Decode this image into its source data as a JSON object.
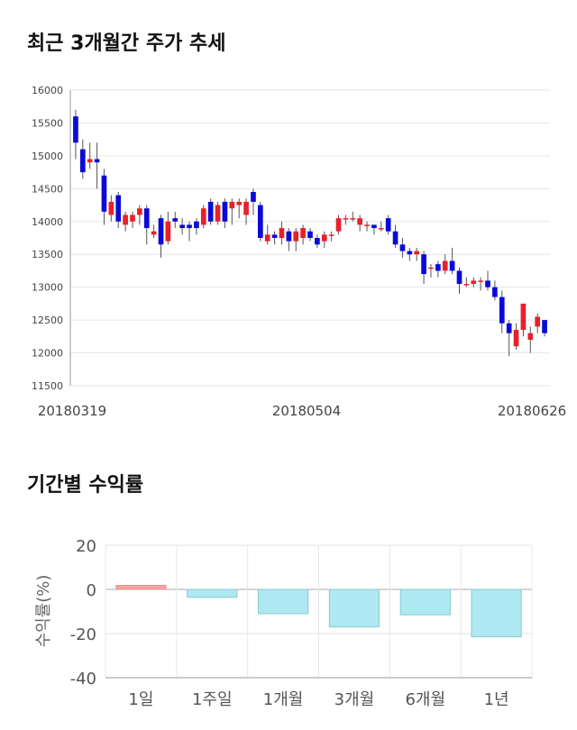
{
  "titles": {
    "price": "최근 3개월간 주가 추세",
    "returns": "기간별 수익률"
  },
  "colors": {
    "up": "#e8202a",
    "down": "#0a0ad8",
    "bar_pos": "#f4a6a6",
    "bar_neg": "#aee8f2",
    "bar_pos_stroke": "#e88",
    "bar_neg_stroke": "#8cc"
  },
  "chart_data": [
    {
      "type": "candlestick",
      "ylim": [
        11500,
        16000
      ],
      "yticks": [
        11500,
        12000,
        12500,
        13000,
        13500,
        14000,
        14500,
        15000,
        15500,
        16000
      ],
      "xlabels": [
        "20180319",
        "20180504",
        "20180626"
      ],
      "grid": true,
      "candles": [
        [
          15600,
          15200,
          15700,
          14950
        ],
        [
          15100,
          14750,
          15250,
          14650
        ],
        [
          14900,
          14950,
          15200,
          14800
        ],
        [
          14950,
          14900,
          15200,
          14500
        ],
        [
          14700,
          14150,
          14800,
          13950
        ],
        [
          14100,
          14300,
          14400,
          14000
        ],
        [
          14400,
          14000,
          14450,
          13900
        ],
        [
          13950,
          14100,
          14150,
          13850
        ],
        [
          14000,
          14100,
          14150,
          13900
        ],
        [
          14100,
          14200,
          14250,
          13950
        ],
        [
          14200,
          13900,
          14250,
          13650
        ],
        [
          13800,
          13850,
          13950,
          13750
        ],
        [
          14050,
          13650,
          14100,
          13450
        ],
        [
          13700,
          14000,
          14150,
          13650
        ],
        [
          14050,
          14000,
          14150,
          13900
        ],
        [
          13950,
          13900,
          14050,
          13800
        ],
        [
          13950,
          13900,
          14000,
          13700
        ],
        [
          14000,
          13900,
          14050,
          13800
        ],
        [
          13950,
          14200,
          14250,
          13900
        ],
        [
          14300,
          14000,
          14350,
          13950
        ],
        [
          14000,
          14250,
          14300,
          13950
        ],
        [
          14300,
          14000,
          14350,
          13900
        ],
        [
          14200,
          14300,
          14350,
          13950
        ],
        [
          14250,
          14300,
          14350,
          14050
        ],
        [
          14100,
          14300,
          14350,
          13950
        ],
        [
          14450,
          14300,
          14500,
          14100
        ],
        [
          14250,
          13750,
          14300,
          13700
        ],
        [
          13700,
          13800,
          13950,
          13650
        ],
        [
          13800,
          13750,
          13850,
          13650
        ],
        [
          13750,
          13900,
          14000,
          13650
        ],
        [
          13850,
          13700,
          13900,
          13550
        ],
        [
          13700,
          13850,
          13900,
          13550
        ],
        [
          13750,
          13900,
          13950,
          13650
        ],
        [
          13850,
          13750,
          13900,
          13700
        ],
        [
          13750,
          13650,
          13800,
          13600
        ],
        [
          13700,
          13800,
          13850,
          13600
        ],
        [
          13800,
          13800,
          13850,
          13700
        ],
        [
          13850,
          14050,
          14100,
          13800
        ],
        [
          14050,
          14050,
          14100,
          13950
        ],
        [
          14050,
          14050,
          14150,
          14000
        ],
        [
          13950,
          14050,
          14100,
          13850
        ],
        [
          13950,
          13950,
          14000,
          13850
        ],
        [
          13950,
          13900,
          13950,
          13800
        ],
        [
          13900,
          13900,
          14000,
          13850
        ],
        [
          14050,
          13850,
          14100,
          13800
        ],
        [
          13850,
          13650,
          13950,
          13600
        ],
        [
          13650,
          13550,
          13750,
          13450
        ],
        [
          13550,
          13500,
          13600,
          13400
        ],
        [
          13500,
          13550,
          13600,
          13400
        ],
        [
          13500,
          13200,
          13550,
          13050
        ],
        [
          13300,
          13300,
          13350,
          13150
        ],
        [
          13350,
          13250,
          13400,
          13150
        ],
        [
          13250,
          13400,
          13500,
          13200
        ],
        [
          13400,
          13250,
          13600,
          13200
        ],
        [
          13250,
          13050,
          13300,
          12900
        ],
        [
          13050,
          13050,
          13150,
          13000
        ],
        [
          13050,
          13100,
          13150,
          13000
        ],
        [
          13100,
          13100,
          13150,
          12950
        ],
        [
          13100,
          13000,
          13250,
          12950
        ],
        [
          13000,
          12850,
          13100,
          12800
        ],
        [
          12850,
          12450,
          12950,
          12300
        ],
        [
          12450,
          12300,
          12500,
          11950
        ],
        [
          12100,
          12350,
          12450,
          12050
        ],
        [
          12350,
          12750,
          12750,
          12250
        ],
        [
          12200,
          12300,
          12400,
          12000
        ],
        [
          12400,
          12550,
          12600,
          12300
        ],
        [
          12500,
          12300,
          12500,
          12250
        ]
      ]
    },
    {
      "type": "bar",
      "categories": [
        "1일",
        "1주일",
        "1개월",
        "3개월",
        "6개월",
        "1년"
      ],
      "values": [
        1.8,
        -3.6,
        -11.0,
        -17.0,
        -11.5,
        -21.5
      ],
      "ylim": [
        -40,
        20
      ],
      "yticks": [
        20,
        0,
        -20,
        -40
      ],
      "ylabel": "수익률(%)",
      "grid": true
    }
  ]
}
